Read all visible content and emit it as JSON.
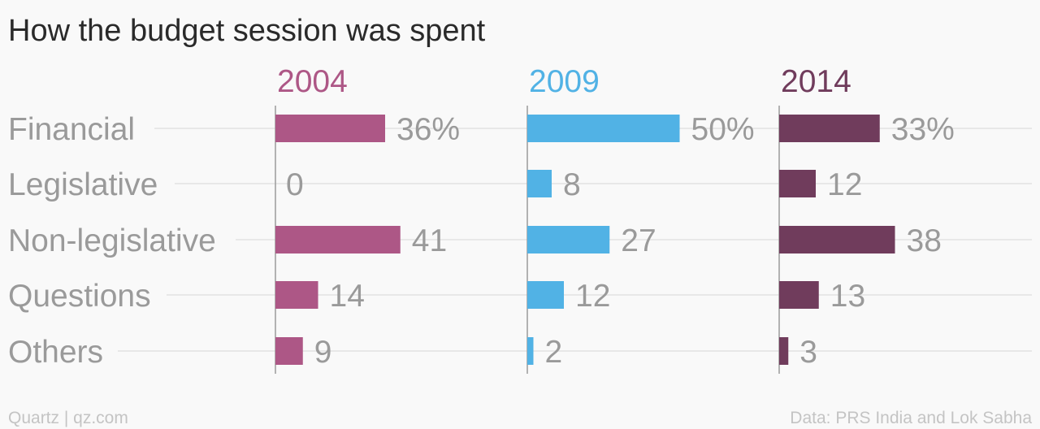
{
  "title": "How the budget session was spent",
  "footer": {
    "left": "Quartz | qz.com",
    "right": "Data: PRS India and Lok Sabha"
  },
  "chart_data": {
    "type": "bar",
    "orientation": "horizontal",
    "title": "How the budget session was spent",
    "categories": [
      "Financial",
      "Legislative",
      "Non-legislative",
      "Questions",
      "Others"
    ],
    "unit": "%",
    "xlim": [
      0,
      60
    ],
    "grid": true,
    "series": [
      {
        "name": "2004",
        "color": "#ad5786",
        "values": [
          36,
          0,
          41,
          14,
          9
        ],
        "labels": [
          "36%",
          "0",
          "41",
          "14",
          "9"
        ]
      },
      {
        "name": "2009",
        "color": "#51b2e5",
        "values": [
          50,
          8,
          27,
          12,
          2
        ],
        "labels": [
          "50%",
          "8",
          "27",
          "12",
          "2"
        ]
      },
      {
        "name": "2014",
        "color": "#703c5c",
        "values": [
          33,
          12,
          38,
          13,
          3
        ],
        "labels": [
          "33%",
          "12",
          "38",
          "13",
          "3"
        ]
      }
    ]
  }
}
